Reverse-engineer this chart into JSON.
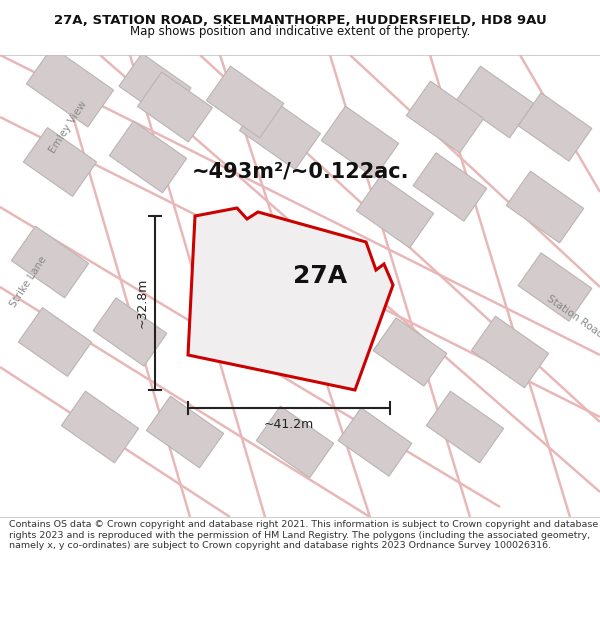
{
  "title_line1": "27A, STATION ROAD, SKELMANTHORPE, HUDDERSFIELD, HD8 9AU",
  "title_line2": "Map shows position and indicative extent of the property.",
  "area_label": "~493m²/~0.122ac.",
  "property_label": "27A",
  "dim_height": "~32.8m",
  "dim_width": "~41.2m",
  "footer_text": "Contains OS data © Crown copyright and database right 2021. This information is subject to Crown copyright and database rights 2023 and is reproduced with the permission of HM Land Registry. The polygons (including the associated geometry, namely x, y co-ordinates) are subject to Crown copyright and database rights 2023 Ordnance Survey 100026316.",
  "map_bg": "#f7f4f4",
  "road_color": "#e8b8b8",
  "road_color2": "#d8a0a0",
  "building_face": "#d4cccc",
  "building_edge": "#bcb4b4",
  "property_fill": "#f0eeee",
  "property_edge": "#cc0000",
  "dim_color": "#222222",
  "white": "#ffffff",
  "street_color": "#888888",
  "label_dark": "#111111",
  "footer_border": "#cccccc",
  "title_fontsize": 9.5,
  "subtitle_fontsize": 8.5,
  "area_fontsize": 15,
  "property_label_fontsize": 18,
  "dim_fontsize": 9,
  "street_fontsize": 7.5,
  "footer_fontsize": 6.8
}
